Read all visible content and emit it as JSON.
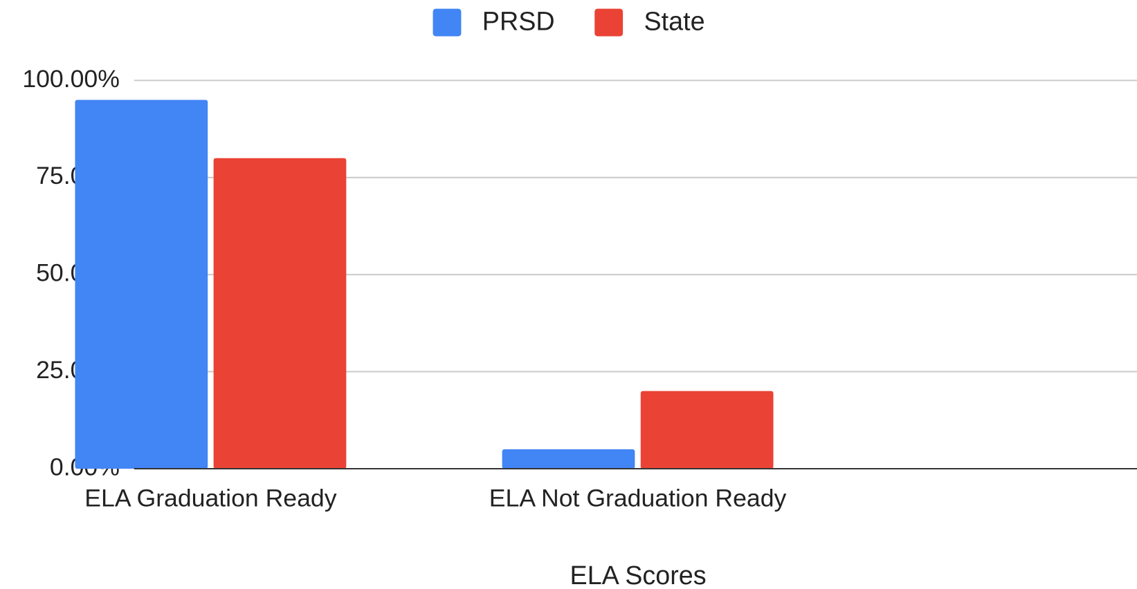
{
  "chart_data": {
    "type": "bar",
    "x_label": "ELA Scores",
    "categories": [
      "ELA Graduation Ready",
      "ELA Not Graduation Ready"
    ],
    "series": [
      {
        "name": "PRSD",
        "color": "#4285f4",
        "values": [
          95,
          5
        ]
      },
      {
        "name": "State",
        "color": "#ea4335",
        "values": [
          80,
          20
        ]
      }
    ],
    "ylim": [
      0,
      100
    ],
    "yticks": [
      {
        "value": 0,
        "label": "0.00%"
      },
      {
        "value": 25,
        "label": "25.00%"
      },
      {
        "value": 50,
        "label": "50.00%"
      },
      {
        "value": 75,
        "label": "75.00%"
      },
      {
        "value": 100,
        "label": "100.00%"
      }
    ],
    "grid": true,
    "legend": "top"
  }
}
